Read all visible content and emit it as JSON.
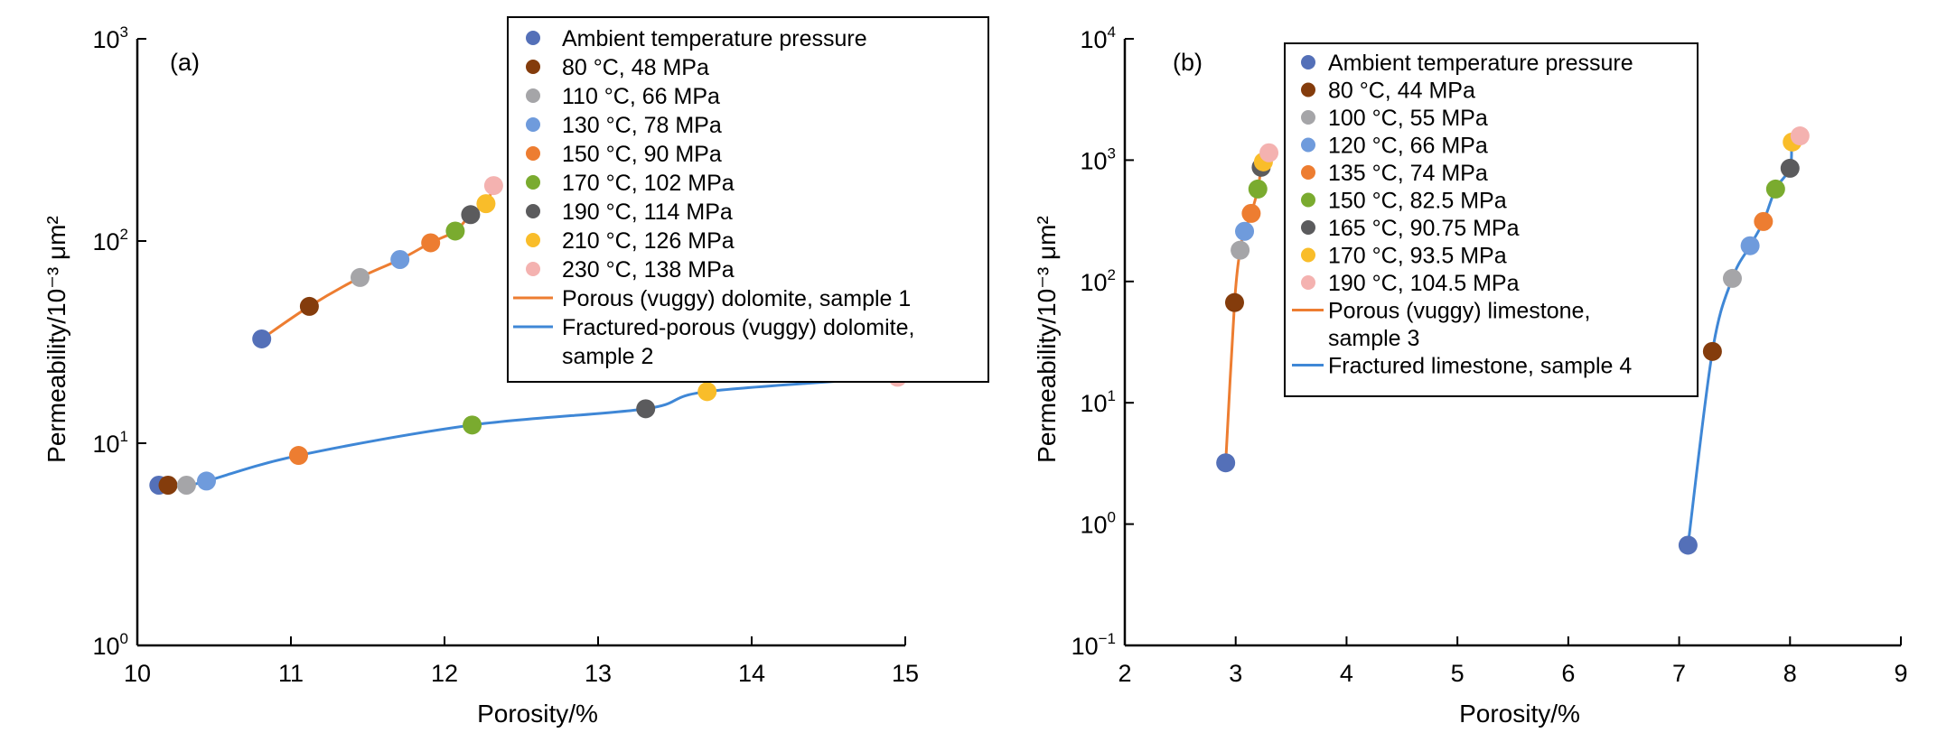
{
  "chart_data": [
    {
      "type": "scatter",
      "panel_label": "(a)",
      "xlabel": "Porosity/%",
      "ylabel": "Permeability/10⁻³ μm²",
      "xlim": [
        10,
        15
      ],
      "ylim": [
        1,
        1000
      ],
      "yscale": "log",
      "x_ticks": [
        "10",
        "11",
        "12",
        "13",
        "14",
        "15"
      ],
      "y_ticks": [
        {
          "base": "10",
          "exp": "0"
        },
        {
          "base": "10",
          "exp": "1"
        },
        {
          "base": "10",
          "exp": "2"
        },
        {
          "base": "10",
          "exp": "3"
        }
      ],
      "grid": false,
      "legend_position": "top-right",
      "conditions": [
        {
          "label": "Ambient temperature pressure",
          "color": "#5470b8"
        },
        {
          "label": "80 °C, 48 MPa",
          "color": "#843c0c"
        },
        {
          "label": "110 °C, 66 MPa",
          "color": "#a5a5a8"
        },
        {
          "label": "130 °C, 78 MPa",
          "color": "#6f9bdc"
        },
        {
          "label": "150 °C, 90 MPa",
          "color": "#ed7d31"
        },
        {
          "label": "170 °C, 102 MPa",
          "color": "#7aab2f"
        },
        {
          "label": "190 °C, 114 MPa",
          "color": "#5b5b5d"
        },
        {
          "label": "210 °C, 126 MPa",
          "color": "#f9bd2a"
        },
        {
          "label": "230 °C, 138 MPa",
          "color": "#f4b2b0"
        }
      ],
      "series": [
        {
          "name": "Porous (vuggy) dolomite, sample 1",
          "line_color": "#ed7d31",
          "x": [
            10.81,
            11.12,
            11.45,
            11.71,
            11.91,
            12.07,
            12.17,
            12.27,
            12.32
          ],
          "y": [
            32.8,
            47.5,
            66,
            81,
            98,
            112,
            135,
            153,
            188
          ]
        },
        {
          "name": "Fractured-porous (vuggy) dolomite, sample 2",
          "line_color": "#3f87d6",
          "x": [
            10.14,
            10.2,
            10.32,
            10.45,
            11.05,
            12.18,
            13.31,
            13.71,
            14.95
          ],
          "y": [
            6.2,
            6.2,
            6.2,
            6.5,
            8.7,
            12.3,
            14.8,
            18.0,
            21.2
          ]
        }
      ],
      "legend_line_labels": [
        "Porous (vuggy) dolomite, sample 1",
        "Fractured-porous (vuggy) dolomite,",
        "sample 2"
      ]
    },
    {
      "type": "scatter",
      "panel_label": "(b)",
      "xlabel": "Porosity/%",
      "ylabel": "Permeability/10⁻³ μm²",
      "xlim": [
        2,
        9
      ],
      "ylim": [
        0.1,
        10000
      ],
      "yscale": "log",
      "x_ticks": [
        "2",
        "3",
        "4",
        "5",
        "6",
        "7",
        "8",
        "9"
      ],
      "y_ticks": [
        {
          "base": "10",
          "exp": "−1"
        },
        {
          "base": "10",
          "exp": "0"
        },
        {
          "base": "10",
          "exp": "1"
        },
        {
          "base": "10",
          "exp": "2"
        },
        {
          "base": "10",
          "exp": "3"
        },
        {
          "base": "10",
          "exp": "4"
        }
      ],
      "grid": false,
      "legend_position": "top-center",
      "conditions": [
        {
          "label": "Ambient temperature pressure",
          "color": "#5470b8"
        },
        {
          "label": "80 °C, 44 MPa",
          "color": "#843c0c"
        },
        {
          "label": "100 °C, 55 MPa",
          "color": "#a5a5a8"
        },
        {
          "label": "120 °C, 66 MPa",
          "color": "#6f9bdc"
        },
        {
          "label": "135 °C, 74 MPa",
          "color": "#ed7d31"
        },
        {
          "label": "150 °C, 82.5 MPa",
          "color": "#7aab2f"
        },
        {
          "label": "165 °C, 90.75 MPa",
          "color": "#5b5b5d"
        },
        {
          "label": "170 °C, 93.5 MPa",
          "color": "#f9bd2a"
        },
        {
          "label": "190 °C, 104.5 MPa",
          "color": "#f4b2b0"
        }
      ],
      "series": [
        {
          "name": "Porous (vuggy) limestone, sample 3",
          "line_color": "#ed7d31",
          "x": [
            2.91,
            2.99,
            3.04,
            3.08,
            3.14,
            3.2,
            3.23,
            3.25,
            3.3
          ],
          "y": [
            3.2,
            67,
            181,
            259,
            364,
            578,
            873,
            967,
            1150
          ]
        },
        {
          "name": "Fractured limestone, sample 4",
          "line_color": "#3f87d6",
          "x": [
            7.08,
            7.3,
            7.48,
            7.64,
            7.76,
            7.87,
            8.0,
            8.02,
            8.09
          ],
          "y": [
            0.67,
            26.5,
            106,
            197,
            312,
            578,
            857,
            1410,
            1585
          ]
        }
      ],
      "legend_line_labels": [
        "Porous (vuggy) limestone,",
        "sample 3",
        "Fractured limestone, sample 4"
      ]
    }
  ]
}
